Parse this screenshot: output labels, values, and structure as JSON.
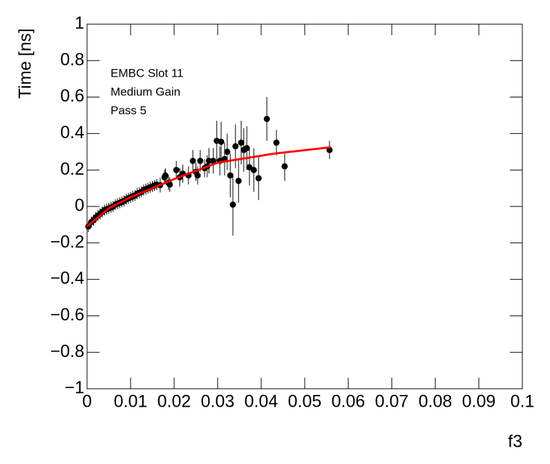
{
  "chart_data": {
    "type": "scatter",
    "y_label": "Time [ns]",
    "x_label": "f3",
    "annotations": [
      "EMBC Slot 11",
      "Medium Gain",
      "Pass 5"
    ],
    "xlim": [
      0,
      0.1
    ],
    "ylim": [
      -1,
      1
    ],
    "xticks": [
      0,
      0.01,
      0.02,
      0.03,
      0.04,
      0.05,
      0.06,
      0.07,
      0.08,
      0.09,
      0.1
    ],
    "yticks": [
      {
        "value": -1,
        "label": "−1"
      },
      {
        "value": -0.8,
        "label": "−0.8"
      },
      {
        "value": -0.6,
        "label": "−0.6"
      },
      {
        "value": -0.4,
        "label": "−0.4"
      },
      {
        "value": -0.2,
        "label": "−0.2"
      },
      0,
      0.2,
      0.4,
      0.6,
      0.8,
      1
    ],
    "points": {
      "color": "#000000",
      "x": [
        0.0003,
        0.001,
        0.0015,
        0.002,
        0.0025,
        0.003,
        0.0035,
        0.004,
        0.0045,
        0.005,
        0.0055,
        0.006,
        0.0065,
        0.007,
        0.0075,
        0.008,
        0.0085,
        0.009,
        0.0095,
        0.01,
        0.0105,
        0.011,
        0.0115,
        0.012,
        0.0125,
        0.013,
        0.0135,
        0.014,
        0.0145,
        0.015,
        0.0155,
        0.016,
        0.0168,
        0.0178,
        0.018,
        0.0187,
        0.019,
        0.0205,
        0.0213,
        0.022,
        0.0233,
        0.0243,
        0.025,
        0.0254,
        0.026,
        0.027,
        0.0276,
        0.028,
        0.029,
        0.0298,
        0.0305,
        0.0308,
        0.0316,
        0.0322,
        0.0329,
        0.0335,
        0.0341,
        0.0348,
        0.0354,
        0.036,
        0.0367,
        0.0373,
        0.0383,
        0.0394,
        0.0413,
        0.0435,
        0.0454,
        0.0557
      ],
      "values": [
        -0.11,
        -0.085,
        -0.075,
        -0.06,
        -0.05,
        -0.04,
        -0.03,
        -0.02,
        -0.015,
        -0.01,
        -0.005,
        0.0,
        0.01,
        0.015,
        0.02,
        0.025,
        0.03,
        0.04,
        0.045,
        0.05,
        0.055,
        0.06,
        0.07,
        0.075,
        0.08,
        0.09,
        0.095,
        0.1,
        0.105,
        0.11,
        0.115,
        0.12,
        0.117,
        0.16,
        0.17,
        0.13,
        0.12,
        0.2,
        0.16,
        0.18,
        0.17,
        0.25,
        0.19,
        0.17,
        0.25,
        0.21,
        0.22,
        0.25,
        0.25,
        0.36,
        0.25,
        0.355,
        0.26,
        0.3,
        0.17,
        0.01,
        0.33,
        0.14,
        0.35,
        0.31,
        0.32,
        0.215,
        0.2,
        0.155,
        0.48,
        0.35,
        0.22,
        0.31
      ],
      "errors": [
        0.03,
        0.03,
        0.03,
        0.03,
        0.03,
        0.03,
        0.03,
        0.03,
        0.03,
        0.03,
        0.03,
        0.03,
        0.03,
        0.03,
        0.03,
        0.03,
        0.03,
        0.03,
        0.03,
        0.03,
        0.03,
        0.03,
        0.03,
        0.03,
        0.03,
        0.03,
        0.03,
        0.03,
        0.03,
        0.03,
        0.03,
        0.03,
        0.04,
        0.04,
        0.04,
        0.04,
        0.04,
        0.05,
        0.05,
        0.05,
        0.05,
        0.06,
        0.05,
        0.05,
        0.06,
        0.05,
        0.06,
        0.07,
        0.07,
        0.11,
        0.08,
        0.11,
        0.09,
        0.1,
        0.12,
        0.17,
        0.12,
        0.12,
        0.12,
        0.12,
        0.12,
        0.1,
        0.12,
        0.12,
        0.12,
        0.07,
        0.08,
        0.05
      ]
    },
    "fit": {
      "color": "#ff0000",
      "x": [
        0,
        0.005,
        0.01,
        0.0165,
        0.02,
        0.03,
        0.043,
        0.056
      ],
      "values": [
        -0.11,
        -0.01,
        0.05,
        0.115,
        0.15,
        0.24,
        0.29,
        0.325
      ]
    }
  }
}
